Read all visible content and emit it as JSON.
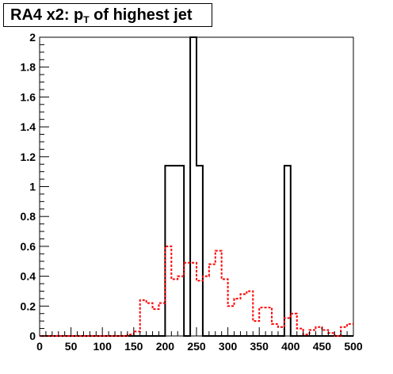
{
  "title": {
    "main": "RA4 x2: p",
    "sub": "T",
    "rest": " of highest jet"
  },
  "chart_data": {
    "type": "histogram",
    "title": "RA4 x2: pT of highest jet",
    "xlabel": "",
    "ylabel": "",
    "xlim": [
      0,
      500
    ],
    "ylim": [
      0,
      2
    ],
    "grid": false,
    "x_ticks": [
      "0",
      "50",
      "100",
      "150",
      "200",
      "250",
      "300",
      "350",
      "400",
      "450",
      "500"
    ],
    "y_ticks": [
      "0",
      "0.2",
      "0.4",
      "0.6",
      "0.8",
      "1",
      "1.2",
      "1.4",
      "1.6",
      "1.8",
      "2"
    ],
    "series": [
      {
        "color": "#000000",
        "style": "solid",
        "bins": [
          {
            "x0": 0,
            "x1": 200,
            "y": 0
          },
          {
            "x0": 200,
            "x1": 230,
            "y": 1.14
          },
          {
            "x0": 230,
            "x1": 240,
            "y": 0
          },
          {
            "x0": 240,
            "x1": 250,
            "y": 2.0
          },
          {
            "x0": 250,
            "x1": 260,
            "y": 1.14
          },
          {
            "x0": 260,
            "x1": 390,
            "y": 0
          },
          {
            "x0": 390,
            "x1": 400,
            "y": 1.14
          },
          {
            "x0": 400,
            "x1": 500,
            "y": 0
          }
        ]
      },
      {
        "color": "#ff0000",
        "style": "dotted",
        "bins": [
          {
            "x0": 0,
            "x1": 140,
            "y": 0
          },
          {
            "x0": 140,
            "x1": 150,
            "y": 0.01
          },
          {
            "x0": 150,
            "x1": 160,
            "y": 0.03
          },
          {
            "x0": 160,
            "x1": 170,
            "y": 0.24
          },
          {
            "x0": 170,
            "x1": 180,
            "y": 0.22
          },
          {
            "x0": 180,
            "x1": 190,
            "y": 0.18
          },
          {
            "x0": 190,
            "x1": 200,
            "y": 0.22
          },
          {
            "x0": 200,
            "x1": 210,
            "y": 0.6
          },
          {
            "x0": 210,
            "x1": 220,
            "y": 0.38
          },
          {
            "x0": 220,
            "x1": 230,
            "y": 0.4
          },
          {
            "x0": 230,
            "x1": 250,
            "y": 0.49
          },
          {
            "x0": 250,
            "x1": 260,
            "y": 0.37
          },
          {
            "x0": 260,
            "x1": 270,
            "y": 0.4
          },
          {
            "x0": 270,
            "x1": 280,
            "y": 0.48
          },
          {
            "x0": 280,
            "x1": 290,
            "y": 0.57
          },
          {
            "x0": 290,
            "x1": 300,
            "y": 0.38
          },
          {
            "x0": 300,
            "x1": 310,
            "y": 0.2
          },
          {
            "x0": 310,
            "x1": 320,
            "y": 0.25
          },
          {
            "x0": 320,
            "x1": 330,
            "y": 0.28
          },
          {
            "x0": 330,
            "x1": 340,
            "y": 0.3
          },
          {
            "x0": 340,
            "x1": 350,
            "y": 0.1
          },
          {
            "x0": 350,
            "x1": 370,
            "y": 0.19
          },
          {
            "x0": 370,
            "x1": 380,
            "y": 0.08
          },
          {
            "x0": 380,
            "x1": 390,
            "y": 0.06
          },
          {
            "x0": 390,
            "x1": 400,
            "y": 0.12
          },
          {
            "x0": 400,
            "x1": 410,
            "y": 0.15
          },
          {
            "x0": 410,
            "x1": 420,
            "y": 0.05
          },
          {
            "x0": 420,
            "x1": 430,
            "y": 0.01
          },
          {
            "x0": 430,
            "x1": 440,
            "y": 0.04
          },
          {
            "x0": 440,
            "x1": 450,
            "y": 0.06
          },
          {
            "x0": 450,
            "x1": 460,
            "y": 0.04
          },
          {
            "x0": 460,
            "x1": 470,
            "y": 0.02
          },
          {
            "x0": 470,
            "x1": 480,
            "y": 0.0
          },
          {
            "x0": 480,
            "x1": 490,
            "y": 0.06
          },
          {
            "x0": 490,
            "x1": 500,
            "y": 0.08
          }
        ]
      }
    ]
  }
}
